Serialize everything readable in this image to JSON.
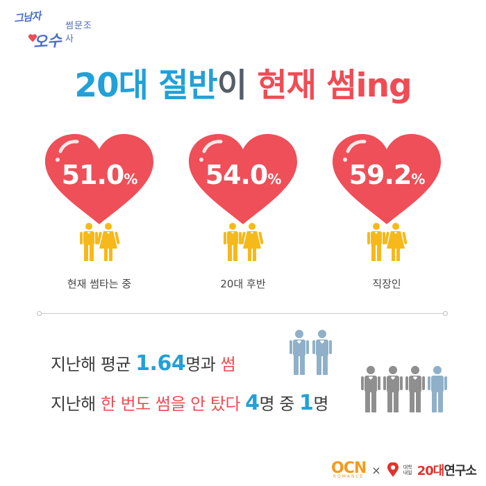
{
  "logo": {
    "script_top": "그남자",
    "script_bottom": "오수",
    "subtitle": "썸문조사"
  },
  "title": {
    "part1": "20대 절반",
    "part2": "이",
    "part3": "현재 썸ing"
  },
  "stats": [
    {
      "value": "51.0",
      "unit": "%",
      "label": "현재 썸타는 중"
    },
    {
      "value": "54.0",
      "unit": "%",
      "label": "20대 후반"
    },
    {
      "value": "59.2",
      "unit": "%",
      "label": "직장인"
    }
  ],
  "facts": {
    "line1": {
      "a": "지난해 평균 ",
      "b": "1.64",
      "c": "명과 ",
      "d": "썸"
    },
    "line2": {
      "a": "지난해 ",
      "b": "한 번도 썸을 안 탔다 ",
      "c": "4",
      "d": "명 중 ",
      "e": "1",
      "f": "명"
    }
  },
  "footer": {
    "ocn": "OCN",
    "ocn_sub": "ROMANCE",
    "x": "×",
    "tiny": "대학 내일",
    "lab_red": "20대",
    "lab_black": "연구소"
  },
  "colors": {
    "blue": "#22a0d7",
    "red": "#ef4c55",
    "heart": "#ee4f58",
    "couple": "#f7b81a",
    "people_blue": "#8fb0c8",
    "people_gray": "#8f8f8f"
  }
}
